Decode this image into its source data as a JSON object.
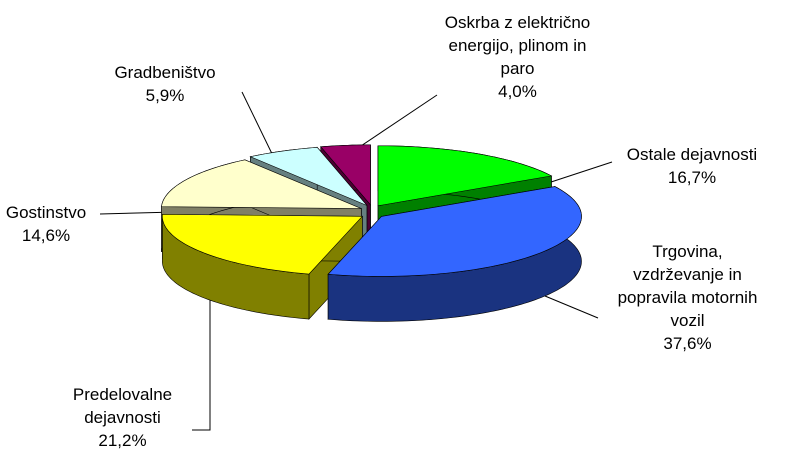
{
  "chart_data": {
    "type": "pie",
    "categories": [
      "Ostale dejavnosti",
      "Trgovina, vzdrževanje in popravila motornih vozil",
      "Predelovalne dejavnosti",
      "Gostinstvo",
      "Gradbeništvo",
      "Oskrba z električno energijo, plinom in paro"
    ],
    "values": [
      16.7,
      37.6,
      21.2,
      14.6,
      5.9,
      4.0
    ],
    "value_labels": [
      "16,7%",
      "37,6%",
      "21,2%",
      "14,6%",
      "5,9%",
      "4,0%"
    ],
    "colors": [
      "#00ff00",
      "#3366ff",
      "#ffff00",
      "#ffffcc",
      "#ccffff",
      "#990066"
    ]
  }
}
